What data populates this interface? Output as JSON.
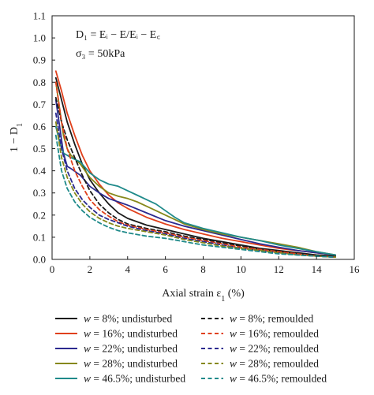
{
  "chart_data": {
    "type": "line",
    "xlabel": "Axial strain ε",
    "xlabel_sub": "1",
    "xlabel_unit": " (%)",
    "ylabel": "1 − D",
    "ylabel_sub": "1",
    "xlim": [
      0,
      16
    ],
    "ylim": [
      0.0,
      1.1
    ],
    "xticks": [
      0,
      2,
      4,
      6,
      8,
      10,
      12,
      14,
      16
    ],
    "yticks": [
      0.0,
      0.1,
      0.2,
      0.3,
      0.4,
      0.5,
      0.6,
      0.7,
      0.8,
      0.9,
      1.0,
      1.1
    ],
    "ytick_labels": [
      "0.0",
      "0.1",
      "0.2",
      "0.3",
      "0.4",
      "0.5",
      "0.6",
      "0.7",
      "0.8",
      "0.9",
      "1.0",
      "1.1"
    ],
    "grid": false,
    "annotations": [
      "D₁ = Eᵢ − E/Eᵢ − E꜀",
      "σ₃ = 50kPa"
    ],
    "legend_position": "below plot, two columns",
    "series": [
      {
        "name": "w = 8%; undisturbed",
        "w": "w",
        "rest": " = 8%; undisturbed",
        "color": "#1a1a1a",
        "dash": "solid",
        "x": [
          0.2,
          0.5,
          0.8,
          1.2,
          1.6,
          2.0,
          2.5,
          3.0,
          3.5,
          4.0,
          5.0,
          6.0,
          7.0,
          8.0,
          9.0,
          10.0,
          11.0,
          12.0,
          13.0,
          14.0,
          15.0
        ],
        "y": [
          0.82,
          0.72,
          0.62,
          0.52,
          0.43,
          0.36,
          0.3,
          0.25,
          0.21,
          0.185,
          0.155,
          0.135,
          0.115,
          0.095,
          0.08,
          0.065,
          0.05,
          0.04,
          0.03,
          0.02,
          0.015
        ]
      },
      {
        "name": "w = 16%; undisturbed",
        "w": "w",
        "rest": " = 16%; undisturbed",
        "color": "#e0401c",
        "dash": "solid",
        "x": [
          0.2,
          0.5,
          0.8,
          1.2,
          1.6,
          2.0,
          2.5,
          3.0,
          3.5,
          4.0,
          5.0,
          6.0,
          7.0,
          8.0,
          9.0,
          10.0,
          11.0,
          12.0,
          13.0,
          14.0,
          15.0
        ],
        "y": [
          0.85,
          0.76,
          0.66,
          0.56,
          0.47,
          0.4,
          0.34,
          0.29,
          0.255,
          0.23,
          0.19,
          0.16,
          0.135,
          0.115,
          0.095,
          0.08,
          0.065,
          0.05,
          0.04,
          0.03,
          0.02
        ]
      },
      {
        "name": "w = 22%; undisturbed",
        "w": "w",
        "rest": " = 22%; undisturbed",
        "color": "#2b2a8f",
        "dash": "solid",
        "x": [
          0.2,
          0.4,
          0.6,
          0.8,
          1.0,
          1.5,
          2.0,
          2.5,
          3.0,
          3.5,
          4.0,
          5.0,
          6.0,
          7.0,
          8.0,
          9.0,
          10.0,
          11.0,
          12.0,
          13.0,
          14.0,
          15.0
        ],
        "y": [
          0.72,
          0.6,
          0.48,
          0.42,
          0.41,
          0.38,
          0.33,
          0.3,
          0.275,
          0.26,
          0.245,
          0.21,
          0.175,
          0.15,
          0.13,
          0.11,
          0.09,
          0.07,
          0.055,
          0.04,
          0.03,
          0.02
        ]
      },
      {
        "name": "w = 28%; undisturbed",
        "w": "w",
        "rest": " = 28%; undisturbed",
        "color": "#86881a",
        "dash": "solid",
        "x": [
          0.2,
          0.4,
          0.6,
          0.8,
          1.0,
          1.5,
          2.0,
          2.5,
          3.0,
          3.5,
          4.0,
          4.5,
          5.0,
          5.5,
          6.0,
          6.5,
          7.0,
          8.0,
          9.0,
          10.0,
          11.0,
          12.0,
          13.0,
          14.0,
          15.0
        ],
        "y": [
          0.8,
          0.68,
          0.56,
          0.5,
          0.47,
          0.43,
          0.37,
          0.33,
          0.3,
          0.285,
          0.275,
          0.26,
          0.24,
          0.22,
          0.2,
          0.18,
          0.16,
          0.135,
          0.115,
          0.1,
          0.085,
          0.07,
          0.055,
          0.035,
          0.02
        ]
      },
      {
        "name": "w = 46.5%; undisturbed",
        "w": "w",
        "rest": " = 46.5%; undisturbed",
        "color": "#1f8a8a",
        "dash": "solid",
        "x": [
          0.2,
          0.4,
          0.6,
          0.8,
          1.0,
          1.5,
          2.0,
          2.5,
          3.0,
          3.5,
          4.0,
          4.5,
          5.0,
          5.5,
          6.0,
          6.5,
          7.0,
          8.0,
          9.0,
          10.0,
          11.0,
          12.0,
          13.0,
          14.0,
          15.0
        ],
        "y": [
          0.6,
          0.53,
          0.48,
          0.47,
          0.46,
          0.44,
          0.39,
          0.36,
          0.34,
          0.33,
          0.31,
          0.29,
          0.27,
          0.25,
          0.22,
          0.19,
          0.165,
          0.14,
          0.12,
          0.1,
          0.085,
          0.065,
          0.05,
          0.035,
          0.02
        ]
      },
      {
        "name": "w = 8%; remoulded",
        "w": "w",
        "rest": " = 8%; remoulded",
        "color": "#1a1a1a",
        "dash": "dashed",
        "x": [
          0.2,
          0.5,
          0.8,
          1.2,
          1.6,
          2.0,
          2.5,
          3.0,
          3.5,
          4.0,
          5.0,
          6.0,
          7.0,
          8.0,
          9.0,
          10.0,
          11.0,
          12.0,
          13.0,
          14.0,
          15.0
        ],
        "y": [
          0.73,
          0.62,
          0.54,
          0.46,
          0.38,
          0.31,
          0.25,
          0.21,
          0.18,
          0.16,
          0.14,
          0.125,
          0.105,
          0.09,
          0.075,
          0.06,
          0.045,
          0.035,
          0.025,
          0.015,
          0.01
        ]
      },
      {
        "name": "w = 16%; remoulded",
        "w": "w",
        "rest": " = 16%; remoulded",
        "color": "#e0401c",
        "dash": "dashed",
        "x": [
          0.2,
          0.5,
          0.8,
          1.2,
          1.6,
          2.0,
          2.5,
          3.0,
          3.5,
          4.0,
          5.0,
          6.0,
          7.0,
          8.0,
          9.0,
          10.0,
          11.0,
          12.0,
          13.0,
          14.0,
          15.0
        ],
        "y": [
          0.8,
          0.62,
          0.5,
          0.4,
          0.33,
          0.27,
          0.225,
          0.195,
          0.17,
          0.155,
          0.135,
          0.12,
          0.1,
          0.085,
          0.07,
          0.055,
          0.045,
          0.035,
          0.025,
          0.015,
          0.01
        ]
      },
      {
        "name": "w = 22%; remoulded",
        "w": "w",
        "rest": " = 22%; remoulded",
        "color": "#2b2a8f",
        "dash": "dashed",
        "x": [
          0.2,
          0.5,
          0.8,
          1.2,
          1.6,
          2.0,
          2.5,
          3.0,
          3.5,
          4.0,
          5.0,
          6.0,
          7.0,
          8.0,
          9.0,
          10.0,
          11.0,
          12.0,
          13.0,
          14.0,
          15.0
        ],
        "y": [
          0.66,
          0.5,
          0.4,
          0.32,
          0.27,
          0.235,
          0.2,
          0.18,
          0.165,
          0.15,
          0.13,
          0.115,
          0.095,
          0.08,
          0.065,
          0.05,
          0.04,
          0.03,
          0.02,
          0.015,
          0.01
        ]
      },
      {
        "name": "w = 28%; remoulded",
        "w": "w",
        "rest": " = 28%; remoulded",
        "color": "#86881a",
        "dash": "dashed",
        "x": [
          0.2,
          0.5,
          0.8,
          1.2,
          1.6,
          2.0,
          2.5,
          3.0,
          3.5,
          4.0,
          5.0,
          6.0,
          7.0,
          8.0,
          9.0,
          10.0,
          11.0,
          12.0,
          13.0,
          14.0,
          15.0
        ],
        "y": [
          0.62,
          0.46,
          0.37,
          0.3,
          0.25,
          0.215,
          0.185,
          0.165,
          0.15,
          0.14,
          0.125,
          0.11,
          0.09,
          0.075,
          0.06,
          0.05,
          0.04,
          0.03,
          0.02,
          0.015,
          0.01
        ]
      },
      {
        "name": "w = 46.5%; remoulded",
        "w": "w",
        "rest": " = 46.5%; remoulded",
        "color": "#1f8a8a",
        "dash": "dashed",
        "x": [
          0.2,
          0.5,
          0.8,
          1.2,
          1.6,
          2.0,
          2.5,
          3.0,
          3.5,
          4.0,
          5.0,
          6.0,
          7.0,
          8.0,
          9.0,
          10.0,
          11.0,
          12.0,
          13.0,
          14.0,
          15.0
        ],
        "y": [
          0.56,
          0.4,
          0.32,
          0.26,
          0.22,
          0.19,
          0.165,
          0.145,
          0.13,
          0.12,
          0.105,
          0.095,
          0.08,
          0.065,
          0.055,
          0.045,
          0.035,
          0.025,
          0.02,
          0.015,
          0.01
        ]
      }
    ]
  }
}
